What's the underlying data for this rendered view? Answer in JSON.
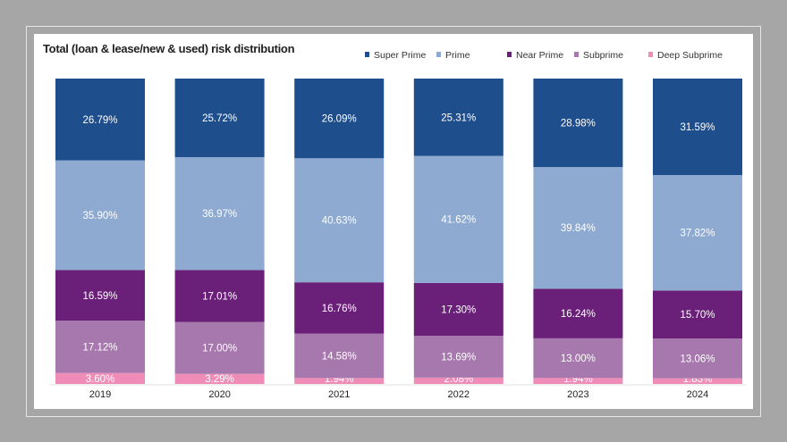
{
  "chart_data": {
    "type": "bar",
    "stacked": true,
    "title": "Total (loan & lease/new & used) risk distribution",
    "categories": [
      "2019",
      "2020",
      "2021",
      "2022",
      "2023",
      "2024"
    ],
    "legend_position": "top-right",
    "grid": false,
    "ylim": [
      0,
      100
    ],
    "series": [
      {
        "name": "Super Prime",
        "color": "#1f4e8c",
        "label_color": "#ffffff",
        "values": [
          26.79,
          25.72,
          26.09,
          25.31,
          28.98,
          31.59
        ]
      },
      {
        "name": "Prime",
        "color": "#8eaad0",
        "label_color": "#ffffff",
        "values": [
          35.9,
          36.97,
          40.63,
          41.62,
          39.84,
          37.82
        ]
      },
      {
        "name": "Near Prime",
        "color": "#6a1f78",
        "label_color": "#ffffff",
        "values": [
          16.59,
          17.01,
          16.76,
          17.3,
          16.24,
          15.7
        ]
      },
      {
        "name": "Subprime",
        "color": "#a678ad",
        "label_color": "#ffffff",
        "values": [
          17.12,
          17.0,
          14.58,
          13.69,
          13.0,
          13.06
        ]
      },
      {
        "name": "Deep Subprime",
        "color": "#f08cb8",
        "label_color": "#ffffff",
        "values": [
          3.6,
          3.29,
          1.94,
          2.08,
          1.94,
          1.83
        ]
      }
    ]
  }
}
